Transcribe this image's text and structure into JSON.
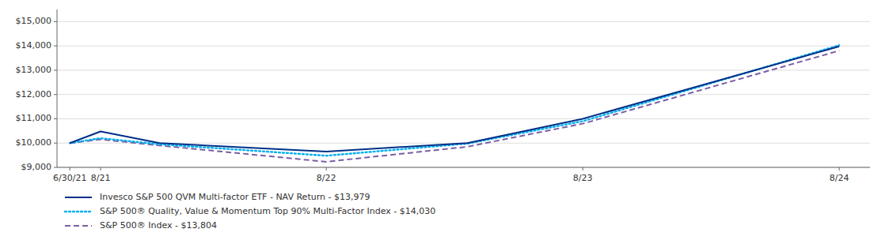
{
  "chart_data": {
    "type": "line",
    "x": [
      0,
      0.12,
      0.35,
      1.0,
      1.55,
      2.0,
      3.0
    ],
    "xlim": [
      -0.05,
      3.12
    ],
    "xticks": [
      {
        "value": 0,
        "label": "6/30/21"
      },
      {
        "value": 0.12,
        "label": "8/21"
      },
      {
        "value": 1.0,
        "label": "8/22"
      },
      {
        "value": 2.0,
        "label": "8/23"
      },
      {
        "value": 3.0,
        "label": "8/24"
      }
    ],
    "ylim": [
      9000,
      15500
    ],
    "yticks": [
      {
        "value": 9000,
        "label": "$9,000"
      },
      {
        "value": 10000,
        "label": "$10,000"
      },
      {
        "value": 11000,
        "label": "$11,000"
      },
      {
        "value": 12000,
        "label": "$12,000"
      },
      {
        "value": 13000,
        "label": "$13,000"
      },
      {
        "value": 14000,
        "label": "$14,000"
      },
      {
        "value": 15000,
        "label": "$15,000"
      }
    ],
    "grid": true,
    "legend": "bottom",
    "series": [
      {
        "name": "Invesco S&P 500 QVM Multi-factor ETF - NAV Return - $13,979",
        "color": "#003087",
        "line_style": "solid",
        "values": [
          10000,
          10480,
          10000,
          9650,
          10000,
          11000,
          13979
        ]
      },
      {
        "name": "S&P 500® Quality, Value & Momentum Top 90% Multi-Factor Index - $14,030",
        "color": "#00AEEF",
        "line_style": "dotted",
        "values": [
          10000,
          10200,
          9950,
          9480,
          9980,
          10900,
          14030
        ]
      },
      {
        "name": "S&P 500® Index - $13,804",
        "color": "#7B5EA7",
        "line_style": "dashed",
        "values": [
          10000,
          10150,
          9900,
          9230,
          9850,
          10800,
          13804
        ]
      }
    ]
  }
}
